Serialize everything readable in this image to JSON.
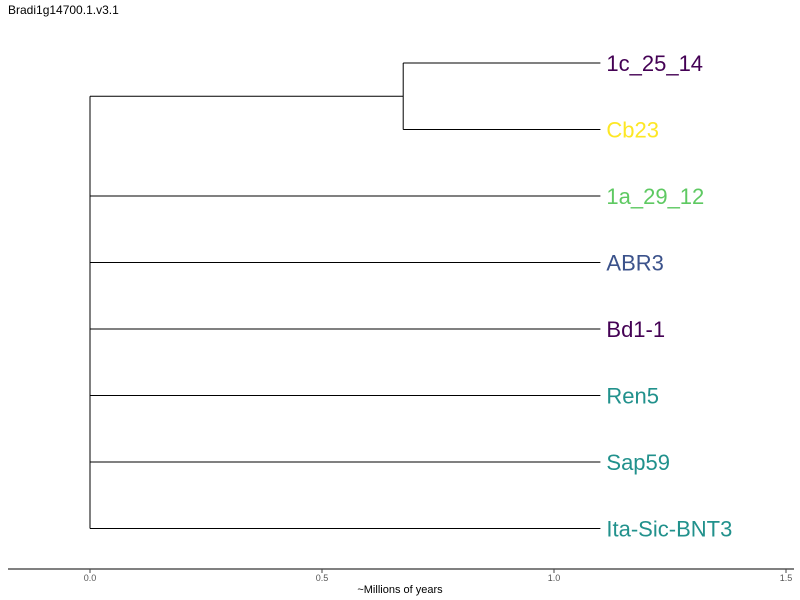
{
  "title": "Bradi1g14700.1.v3.1",
  "axis": {
    "label": "~Millions of years",
    "min": 0.0,
    "max": 1.5,
    "ticks": [
      {
        "value": 0.0,
        "label": "0.0"
      },
      {
        "value": 0.5,
        "label": "0.5"
      },
      {
        "value": 1.0,
        "label": "1.0"
      },
      {
        "value": 1.5,
        "label": "1.5"
      }
    ]
  },
  "tree": {
    "root_age": 0.0,
    "internal_nodes": [
      {
        "id": "clade-a",
        "age": 0.675,
        "children": [
          "1c_25_14",
          "Cb23"
        ]
      }
    ],
    "tip_age": 1.1,
    "tips": [
      {
        "name": "1c_25_14",
        "color": "#440154",
        "parent": "clade-a"
      },
      {
        "name": "Cb23",
        "color": "#fde725",
        "parent": "clade-a"
      },
      {
        "name": "1a_29_12",
        "color": "#5ec962",
        "parent": "root"
      },
      {
        "name": "ABR3",
        "color": "#3b528b",
        "parent": "root"
      },
      {
        "name": "Bd1-1",
        "color": "#440154",
        "parent": "root"
      },
      {
        "name": "Ren5",
        "color": "#21918c",
        "parent": "root"
      },
      {
        "name": "Sap59",
        "color": "#21918c",
        "parent": "root"
      },
      {
        "name": "Ita-Sic-BNT3",
        "color": "#21918c",
        "parent": "root"
      }
    ]
  }
}
